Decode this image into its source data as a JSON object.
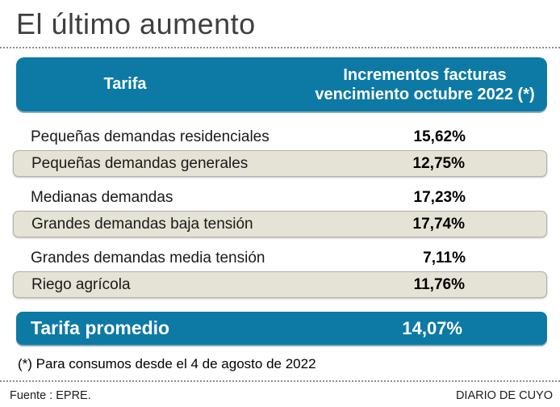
{
  "title": "El último aumento",
  "table": {
    "header": {
      "col1": "Tarifa",
      "col2_line1": "Incrementos facturas",
      "col2_line2": "vencimiento octubre 2022 (*)"
    },
    "rows": [
      {
        "label": "Pequeñas demandas residenciales",
        "value": "15,62%"
      },
      {
        "label": "Pequeñas demandas generales",
        "value": "12,75%"
      },
      {
        "label": "Medianas demandas",
        "value": "17,23%"
      },
      {
        "label": "Grandes demandas baja tensión",
        "value": "17,74%"
      },
      {
        "label": "Grandes demandas media tensión",
        "value": "7,11%"
      },
      {
        "label": "Riego agrícola",
        "value": "11,76%"
      }
    ],
    "summary": {
      "label": "Tarifa promedio",
      "value": "14,07%"
    }
  },
  "footnote": "(*) Para consumos desde el 4 de agosto de 2022",
  "footer": {
    "source": "Fuente : EPRE.",
    "brand": "DIARIO DE CUYO"
  },
  "colors": {
    "accent_blue": "#0d7aa6",
    "row_beige": "#e5e2d6",
    "title_gray": "#3f3f3f"
  },
  "chart_data": {
    "type": "table",
    "title": "El último aumento",
    "columns": [
      "Tarifa",
      "Incrementos facturas vencimiento octubre 2022 (*)"
    ],
    "rows": [
      [
        "Pequeñas demandas residenciales",
        "15,62%"
      ],
      [
        "Pequeñas demandas generales",
        "12,75%"
      ],
      [
        "Medianas demandas",
        "17,23%"
      ],
      [
        "Grandes demandas baja tensión",
        "17,74%"
      ],
      [
        "Grandes demandas media tensión",
        "7,11%"
      ],
      [
        "Riego agrícola",
        "11,76%"
      ]
    ],
    "summary_row": [
      "Tarifa promedio",
      "14,07%"
    ],
    "values_numeric_percent": [
      15.62,
      12.75,
      17.23,
      17.74,
      7.11,
      11.76
    ],
    "average_percent": 14.07,
    "footnote": "(*) Para consumos desde el 4 de agosto de 2022",
    "source": "Fuente : EPRE."
  }
}
